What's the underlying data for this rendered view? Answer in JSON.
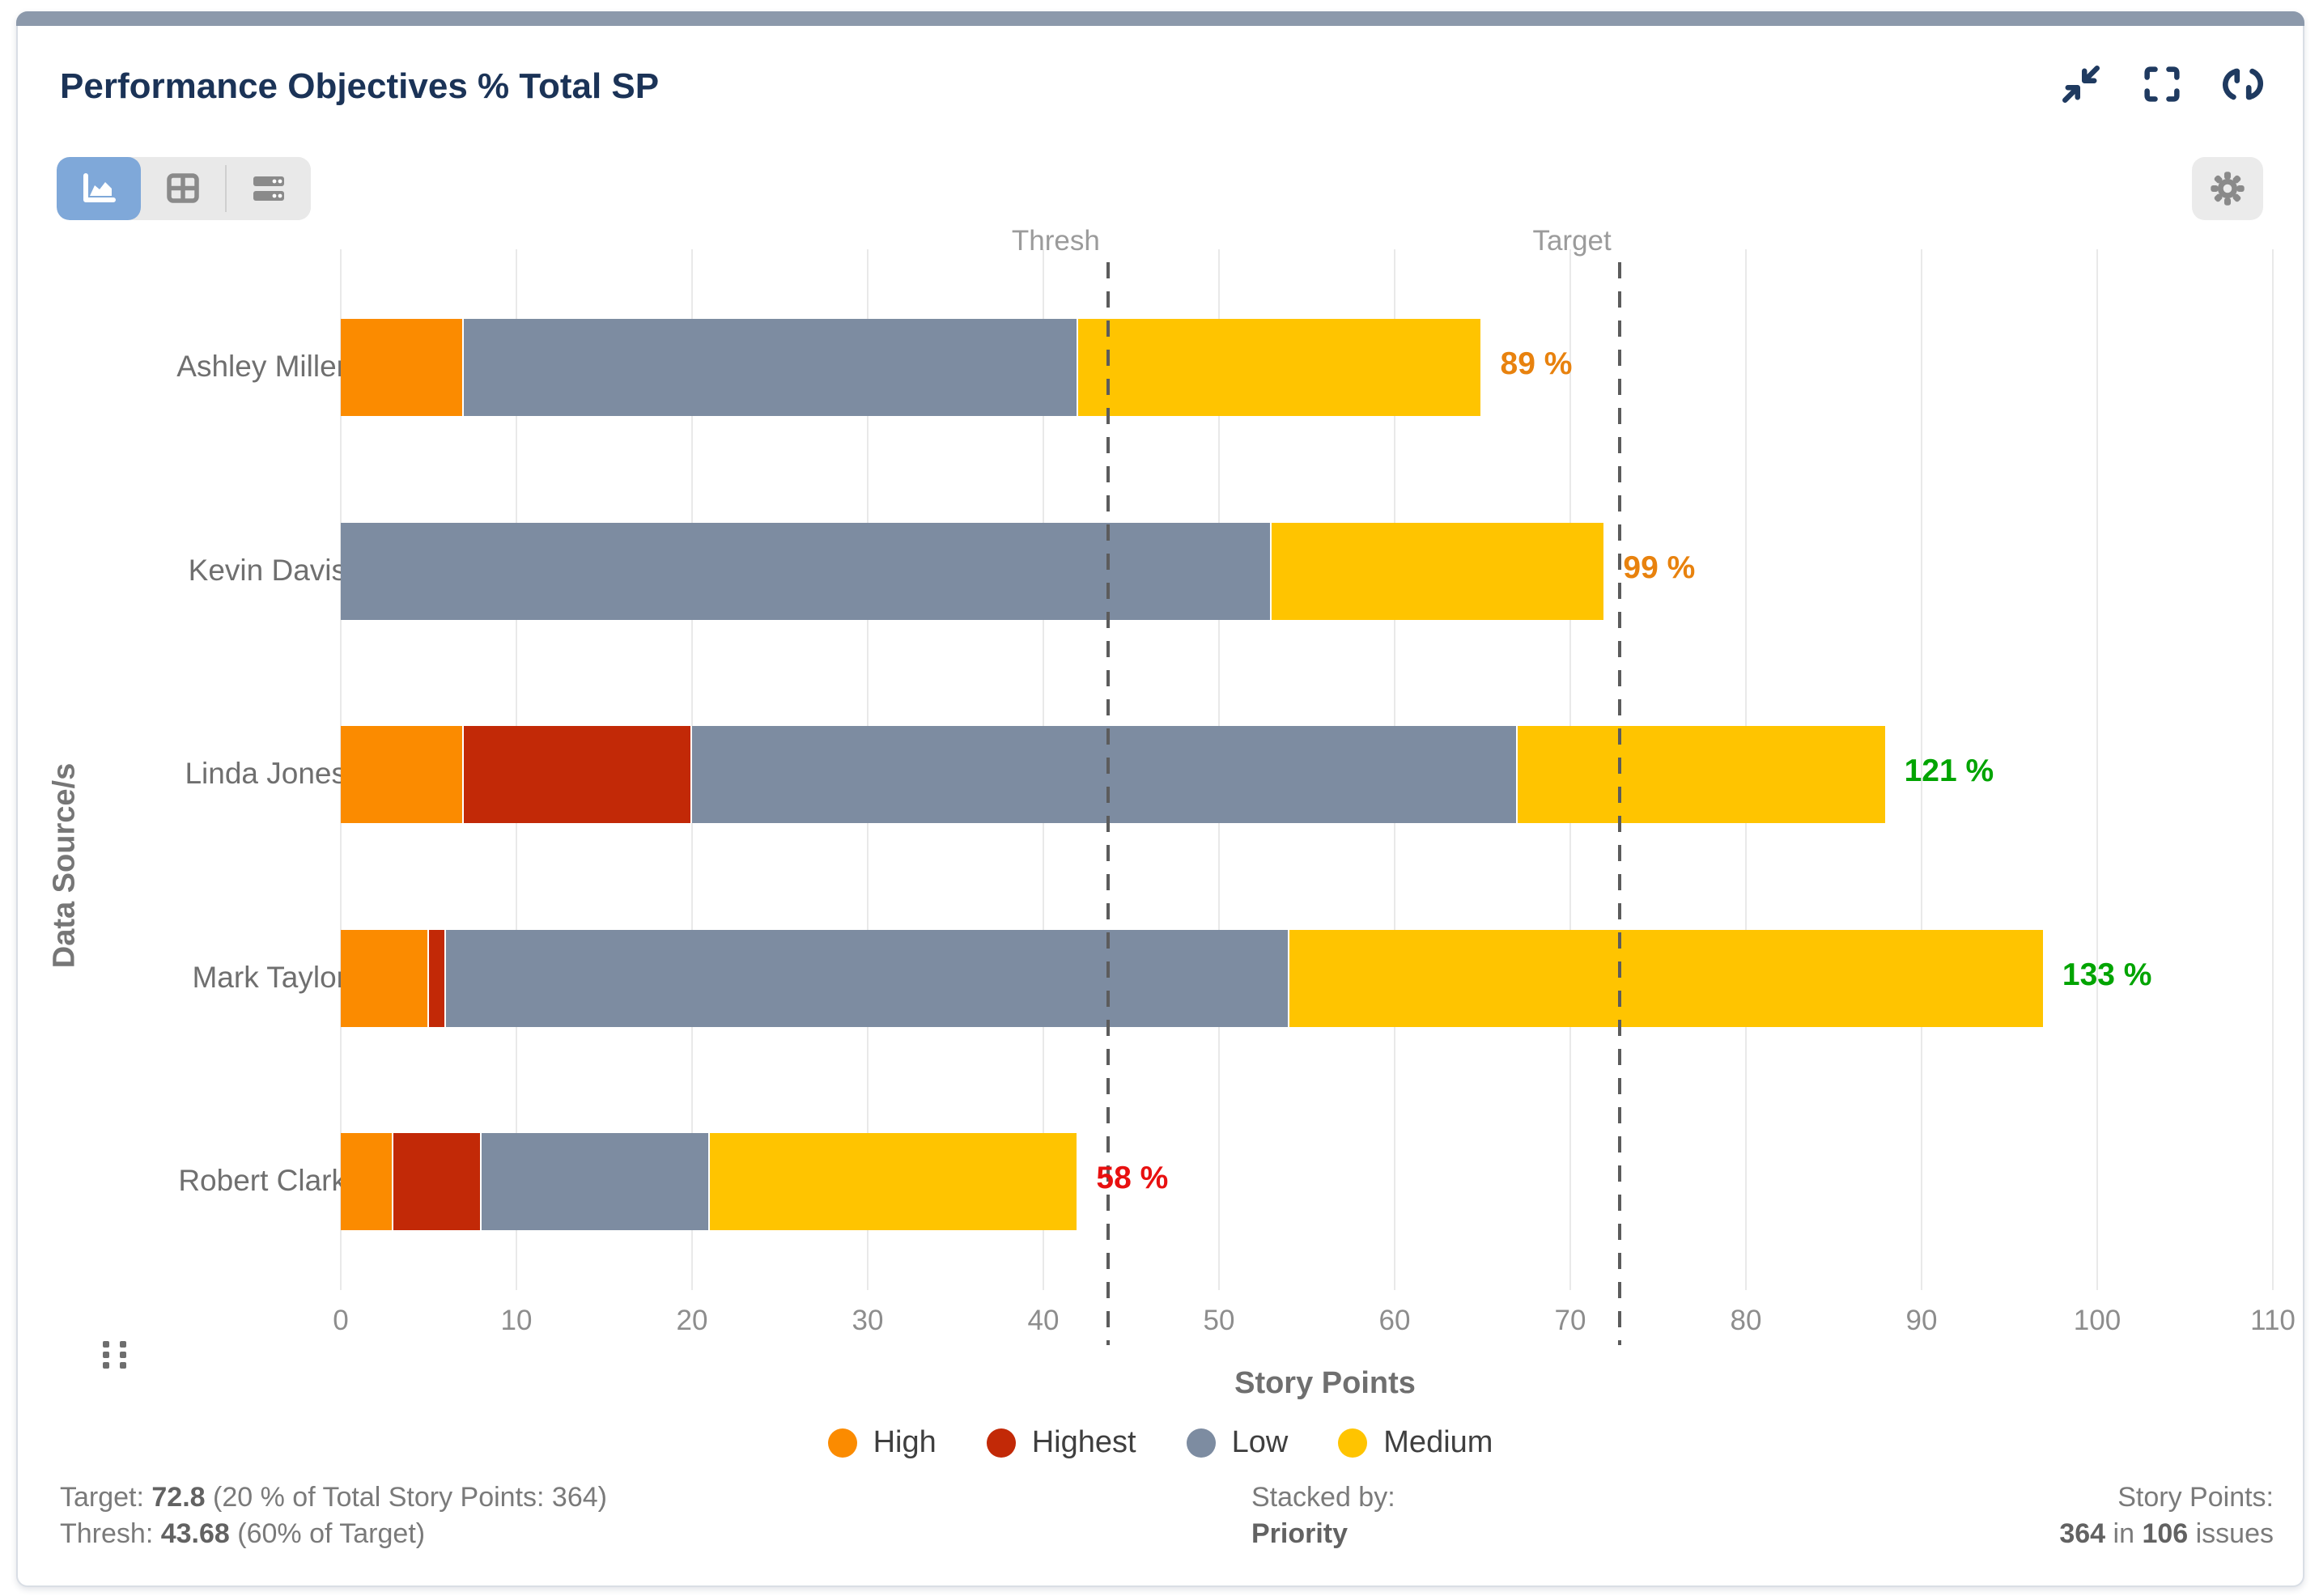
{
  "accent_color": "#7fa8d9",
  "title_color": "#1b3357",
  "header": {
    "title": "Performance Objectives % Total SP",
    "actions": [
      {
        "icon": "collapse-icon"
      },
      {
        "icon": "fullscreen-icon"
      },
      {
        "icon": "refresh-icon"
      }
    ]
  },
  "view_toolbar": {
    "buttons": [
      {
        "icon": "area-chart-icon",
        "active": true
      },
      {
        "icon": "table-icon",
        "active": false
      },
      {
        "icon": "rows-icon",
        "active": false
      }
    ],
    "settings_icon": "gear-icon",
    "drag_handle_icon": "drag-handle-icon"
  },
  "chart_data": {
    "type": "bar",
    "orientation": "horizontal",
    "stacked": true,
    "xlabel": "Story Points",
    "ylabel": "Data Source/s",
    "xlim": [
      0,
      110
    ],
    "xticks": [
      0,
      10,
      20,
      30,
      40,
      50,
      60,
      70,
      80,
      90,
      100,
      110
    ],
    "grid": true,
    "legend_position": "bottom",
    "categories": [
      "Ashley Miller",
      "Kevin Davis",
      "Linda Jones",
      "Mark Taylor",
      "Robert Clark"
    ],
    "series": [
      {
        "name": "High",
        "color": "#fb8b00",
        "values": [
          7,
          0,
          7,
          5,
          3
        ]
      },
      {
        "name": "Highest",
        "color": "#c22907",
        "values": [
          0,
          0,
          13,
          1,
          5
        ]
      },
      {
        "name": "Low",
        "color": "#7d8ca1",
        "values": [
          35,
          53,
          47,
          48,
          13
        ]
      },
      {
        "name": "Medium",
        "color": "#ffc400",
        "values": [
          23,
          19,
          21,
          43,
          21
        ]
      }
    ],
    "totals": [
      65,
      72,
      88,
      97,
      42
    ],
    "bar_labels": [
      {
        "text": "89 %",
        "color": "#e8820e"
      },
      {
        "text": "99 %",
        "color": "#e8820e"
      },
      {
        "text": "121 %",
        "color": "#00a400"
      },
      {
        "text": "133 %",
        "color": "#00a400"
      },
      {
        "text": "58 %",
        "color": "#e81010"
      }
    ],
    "reference_lines": [
      {
        "label": "Thresh",
        "value": 43.68
      },
      {
        "label": "Target",
        "value": 72.8
      }
    ]
  },
  "footer": {
    "target_line": {
      "prefix": "Target: ",
      "value": "72.8",
      "suffix": " (20 % of Total Story Points: 364)"
    },
    "thresh_line": {
      "prefix": "Thresh: ",
      "value": "43.68",
      "suffix": " (60% of Target)"
    },
    "stacked_by": {
      "label": "Stacked by:",
      "value": "Priority"
    },
    "story_points": {
      "label": "Story Points:",
      "value": "364",
      "mid": " in ",
      "count": "106",
      "suffix": " issues"
    }
  }
}
